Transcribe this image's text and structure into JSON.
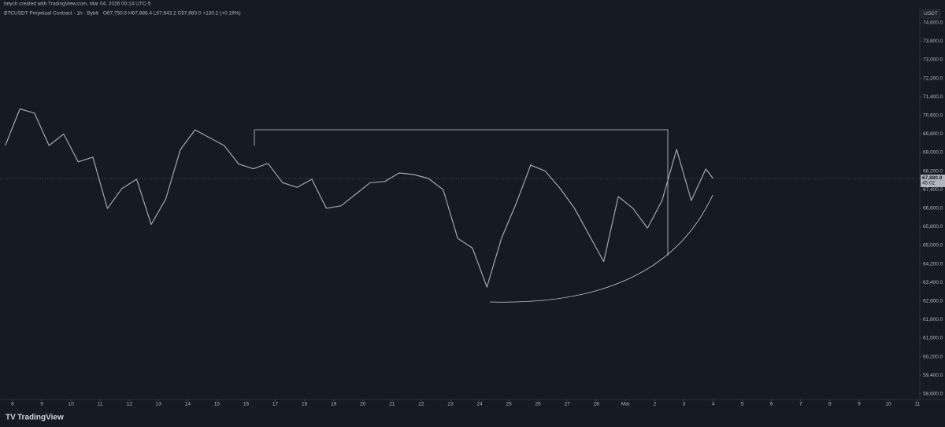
{
  "chart_data": {
    "type": "line",
    "caption": "beych created with TradingView.com, Mar 04, 2026 00:14 UTC-5",
    "title": "BTCUSDT Perpetual Contract · 1h · Bybit",
    "ohlc": "O67,750.6 H67,888.4 L67,643.2 C67,880.0 +130.2 (+0.19%)",
    "unit": "USDT",
    "brand": "TradingView",
    "countdown": "45:02",
    "last_price": {
      "value": 67880,
      "label": "67,880.0"
    },
    "x": [
      -0.25,
      0.25,
      0.75,
      1.25,
      1.75,
      2.25,
      2.75,
      3.25,
      3.75,
      4.25,
      4.75,
      5.25,
      5.75,
      6.25,
      6.75,
      7.25,
      7.75,
      8.25,
      8.75,
      9.25,
      9.75,
      10.25,
      10.75,
      11.25,
      11.75,
      12.25,
      12.75,
      13.25,
      13.75,
      14.25,
      14.75,
      15.25,
      15.75,
      16.25,
      16.75,
      17.25,
      17.75,
      18.25,
      18.75,
      19.25,
      19.75,
      20.25,
      20.75,
      21.25,
      21.75,
      22.25,
      22.75,
      23.25,
      23.75,
      24.0
    ],
    "series": [
      {
        "name": "BTCUSDT",
        "color": "#a3a6af",
        "values": [
          69300,
          70880,
          70700,
          69300,
          69800,
          68600,
          68800,
          66590,
          67450,
          67850,
          65900,
          67000,
          69130,
          69980,
          69640,
          69300,
          68500,
          68300,
          68530,
          67700,
          67500,
          67850,
          66600,
          66700,
          67200,
          67700,
          67750,
          68120,
          68050,
          67880,
          67400,
          65300,
          64890,
          63200,
          65300,
          66800,
          68460,
          68200,
          67460,
          66600,
          65450,
          64300,
          67100,
          66600,
          65740,
          66930,
          69130,
          66930,
          68290,
          67880
        ]
      }
    ],
    "xlim": [
      -0.43,
      31.08
    ],
    "xticks": [
      {
        "value": 0,
        "label": "8"
      },
      {
        "value": 1,
        "label": "9"
      },
      {
        "value": 2,
        "label": "10"
      },
      {
        "value": 3,
        "label": "11"
      },
      {
        "value": 4,
        "label": "12"
      },
      {
        "value": 5,
        "label": "13"
      },
      {
        "value": 6,
        "label": "14"
      },
      {
        "value": 7,
        "label": "15"
      },
      {
        "value": 8,
        "label": "16"
      },
      {
        "value": 9,
        "label": "17"
      },
      {
        "value": 10,
        "label": "18"
      },
      {
        "value": 11,
        "label": "19"
      },
      {
        "value": 12,
        "label": "20"
      },
      {
        "value": 13,
        "label": "21"
      },
      {
        "value": 14,
        "label": "22"
      },
      {
        "value": 15,
        "label": "23"
      },
      {
        "value": 16,
        "label": "24"
      },
      {
        "value": 17,
        "label": "25"
      },
      {
        "value": 18,
        "label": "26"
      },
      {
        "value": 19,
        "label": "27"
      },
      {
        "value": 20,
        "label": "28"
      },
      {
        "value": 21,
        "label": "Mar"
      },
      {
        "value": 22,
        "label": "2"
      },
      {
        "value": 23,
        "label": "3"
      },
      {
        "value": 24,
        "label": "4"
      },
      {
        "value": 25,
        "label": "5"
      },
      {
        "value": 26,
        "label": "6"
      },
      {
        "value": 27,
        "label": "7"
      },
      {
        "value": 28,
        "label": "8"
      },
      {
        "value": 29,
        "label": "9"
      },
      {
        "value": 30,
        "label": "10"
      },
      {
        "value": 31,
        "label": "11"
      }
    ],
    "ylim": [
      58355,
      75236
    ],
    "yticks": [
      {
        "value": 58600,
        "label": "58,600.0"
      },
      {
        "value": 59400,
        "label": "59,400.0"
      },
      {
        "value": 60200,
        "label": "60,200.0"
      },
      {
        "value": 61000,
        "label": "61,000.0"
      },
      {
        "value": 61800,
        "label": "61,800.0"
      },
      {
        "value": 62600,
        "label": "62,600.0"
      },
      {
        "value": 63400,
        "label": "63,400.0"
      },
      {
        "value": 64200,
        "label": "64,200.0"
      },
      {
        "value": 65000,
        "label": "65,000.0"
      },
      {
        "value": 65800,
        "label": "65,800.0"
      },
      {
        "value": 66600,
        "label": "66,600.0"
      },
      {
        "value": 67400,
        "label": "67,400.0"
      },
      {
        "value": 68200,
        "label": "68,200.0"
      },
      {
        "value": 69000,
        "label": "69,000.0"
      },
      {
        "value": 69800,
        "label": "69,800.0"
      },
      {
        "value": 70600,
        "label": "70,600.0"
      },
      {
        "value": 71400,
        "label": "71,400.0"
      },
      {
        "value": 72200,
        "label": "72,200.0"
      },
      {
        "value": 73000,
        "label": "73,000.0"
      },
      {
        "value": 73800,
        "label": "73,800.0"
      },
      {
        "value": 74600,
        "label": "74,600.0"
      }
    ],
    "grid": false
  }
}
